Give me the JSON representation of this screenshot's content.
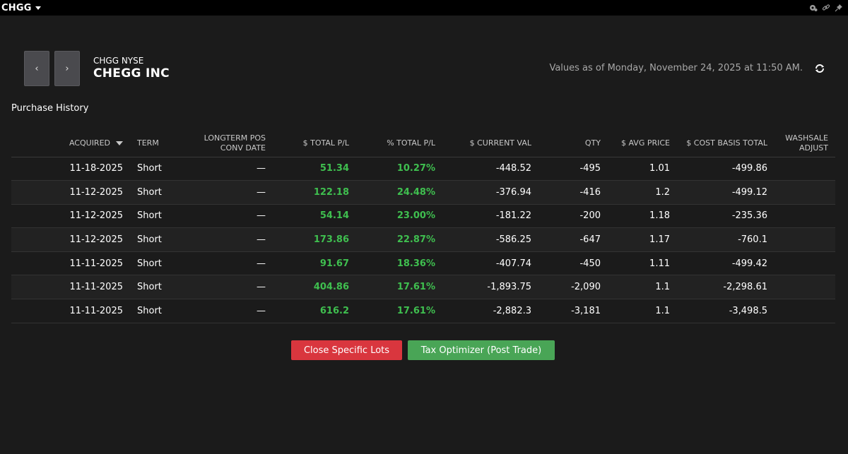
{
  "window": {
    "symbol": "CHGG"
  },
  "header": {
    "prev_label": "‹",
    "next_label": "›",
    "symbol_exchange": "CHGG NYSE",
    "company_name": "CHEGG INC",
    "values_as_of": "Values as of Monday, November 24, 2025 at 11:50 AM."
  },
  "section": {
    "title": "Purchase History"
  },
  "table": {
    "columns": {
      "acquired": "ACQUIRED",
      "term": "TERM",
      "longterm_line1": "LONGTERM POS",
      "longterm_line2": "CONV DATE",
      "total_pl": "$ TOTAL P/L",
      "pct_total_pl": "% TOTAL P/L",
      "current_val": "$ CURRENT VAL",
      "qty": "QTY",
      "avg_price": "$ AVG PRICE",
      "cost_basis": "$ COST BASIS TOTAL",
      "washsale_line1": "WASHSALE",
      "washsale_line2": "ADJUST"
    },
    "rows": [
      {
        "acquired": "11-18-2025",
        "term": "Short",
        "conv_date": "—",
        "total_pl": "51.34",
        "pct_total_pl": "10.27%",
        "current_val": "-448.52",
        "qty": "-495",
        "avg_price": "1.01",
        "cost_basis": "-499.86",
        "washsale": ""
      },
      {
        "acquired": "11-12-2025",
        "term": "Short",
        "conv_date": "—",
        "total_pl": "122.18",
        "pct_total_pl": "24.48%",
        "current_val": "-376.94",
        "qty": "-416",
        "avg_price": "1.2",
        "cost_basis": "-499.12",
        "washsale": ""
      },
      {
        "acquired": "11-12-2025",
        "term": "Short",
        "conv_date": "—",
        "total_pl": "54.14",
        "pct_total_pl": "23.00%",
        "current_val": "-181.22",
        "qty": "-200",
        "avg_price": "1.18",
        "cost_basis": "-235.36",
        "washsale": ""
      },
      {
        "acquired": "11-12-2025",
        "term": "Short",
        "conv_date": "—",
        "total_pl": "173.86",
        "pct_total_pl": "22.87%",
        "current_val": "-586.25",
        "qty": "-647",
        "avg_price": "1.17",
        "cost_basis": "-760.1",
        "washsale": ""
      },
      {
        "acquired": "11-11-2025",
        "term": "Short",
        "conv_date": "—",
        "total_pl": "91.67",
        "pct_total_pl": "18.36%",
        "current_val": "-407.74",
        "qty": "-450",
        "avg_price": "1.11",
        "cost_basis": "-499.42",
        "washsale": ""
      },
      {
        "acquired": "11-11-2025",
        "term": "Short",
        "conv_date": "—",
        "total_pl": "404.86",
        "pct_total_pl": "17.61%",
        "current_val": "-1,893.75",
        "qty": "-2,090",
        "avg_price": "1.1",
        "cost_basis": "-2,298.61",
        "washsale": ""
      },
      {
        "acquired": "11-11-2025",
        "term": "Short",
        "conv_date": "—",
        "total_pl": "616.2",
        "pct_total_pl": "17.61%",
        "current_val": "-2,882.3",
        "qty": "-3,181",
        "avg_price": "1.1",
        "cost_basis": "-3,498.5",
        "washsale": ""
      }
    ]
  },
  "actions": {
    "close_specific_lots": "Close Specific Lots",
    "tax_optimizer": "Tax Optimizer (Post Trade)"
  },
  "colors": {
    "background": "#1b1b1b",
    "titlebar": "#000000",
    "positive": "#3fbf4f",
    "danger_button": "#d9363e",
    "success_button": "#49a556"
  },
  "icons": {
    "title_caret": "caret-down-icon",
    "link": "link-icon",
    "pin": "pin-icon",
    "settings": "gear-icon",
    "refresh": "refresh-icon"
  }
}
